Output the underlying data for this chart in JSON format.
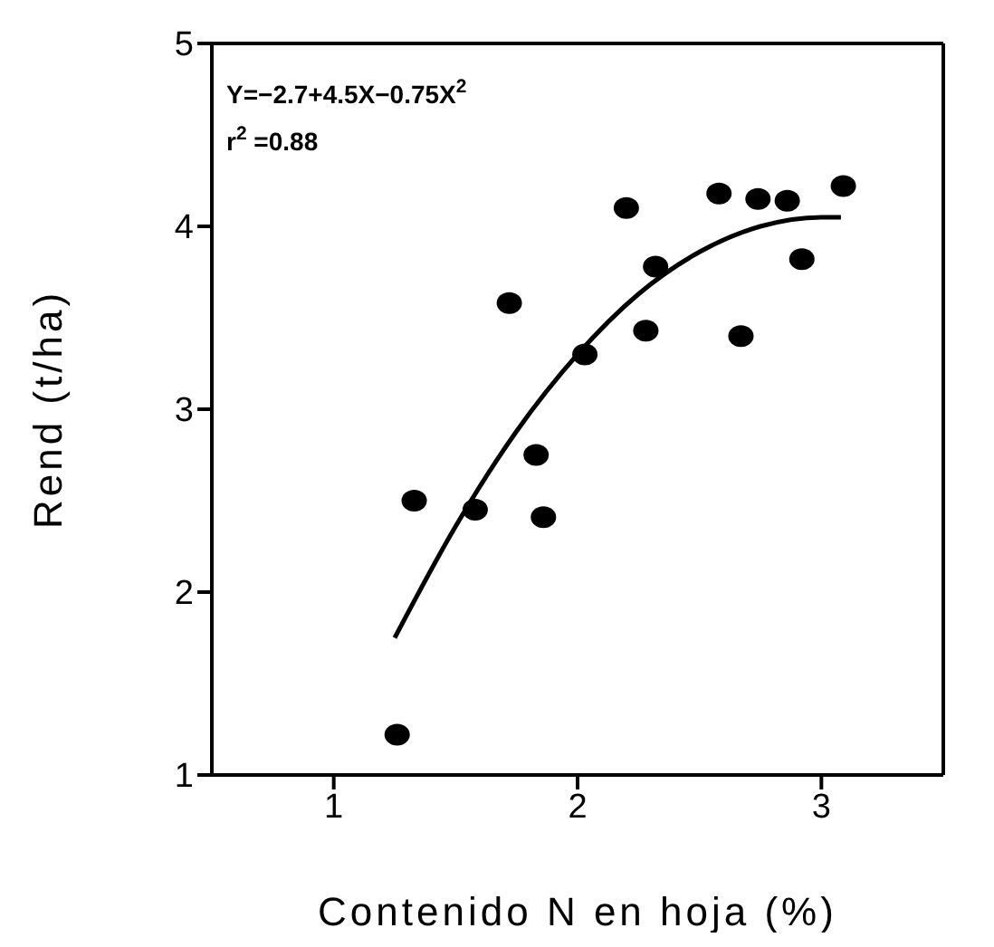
{
  "chart_data": {
    "type": "scatter",
    "xlabel": "Contenido N en hoja (%)",
    "ylabel": "Rend (t/ha)",
    "annotations": [
      "Y=−2.7+4.5X−0.75X$^{2}$",
      "r$^{2}$ =0.88"
    ],
    "xlim": [
      0.5,
      3.5
    ],
    "ylim": [
      1,
      5
    ],
    "xticks": [
      1,
      2,
      3
    ],
    "yticks": [
      1,
      2,
      3,
      4,
      5
    ],
    "marker": "circle",
    "series": [
      {
        "color": "#000000",
        "x": [
          1.26,
          1.33,
          1.58,
          1.72,
          1.83,
          1.86,
          2.03,
          2.2,
          2.28,
          2.32,
          2.58,
          2.67,
          2.74,
          2.86,
          2.92,
          3.09
        ],
        "values": [
          1.22,
          2.5,
          2.45,
          3.58,
          2.75,
          2.41,
          3.3,
          4.1,
          3.43,
          3.78,
          4.18,
          3.4,
          4.15,
          4.14,
          3.82,
          4.22
        ]
      },
      {
        "type": "line",
        "color": "#000000",
        "marker": "none",
        "x": [
          1.25,
          1.5,
          1.75,
          2,
          2.25,
          2.5,
          2.75,
          3,
          3.08
        ],
        "values": [
          1.75,
          2.36,
          2.88,
          3.3,
          3.63,
          3.86,
          4.0,
          4.05,
          4.05
        ]
      }
    ]
  }
}
